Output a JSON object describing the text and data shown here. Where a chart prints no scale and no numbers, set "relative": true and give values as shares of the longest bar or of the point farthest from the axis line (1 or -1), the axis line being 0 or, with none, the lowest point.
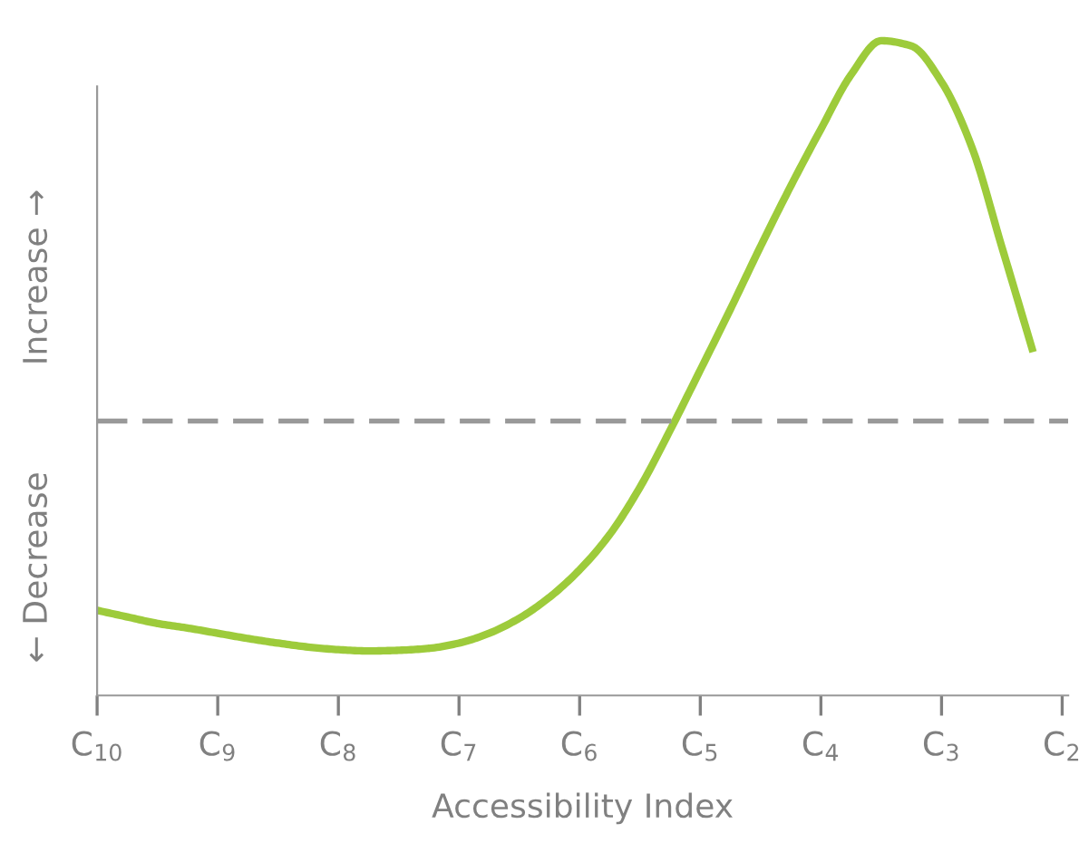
{
  "chart_data": {
    "type": "line",
    "relative": true,
    "xlabel": "Accessibility Index",
    "annotations": [
      "← Decrease",
      "Increase →"
    ],
    "categories": [
      "C$_{10}$",
      null,
      null,
      null,
      "C$_{9}$",
      null,
      null,
      null,
      "C$_{8}$",
      null,
      null,
      null,
      "C$_{7}$",
      null,
      null,
      null,
      "C$_{6}$",
      null,
      null,
      null,
      "C$_{5}$",
      null,
      null,
      null,
      "C$_{4}$",
      null,
      null,
      null,
      "C$_{3}$",
      null,
      null,
      null,
      "C$_{2}$"
    ],
    "series": [
      {
        "color": "#9dcb3b",
        "values": [
          0.13,
          0.12,
          0.11,
          0.103,
          0.095,
          0.087,
          0.08,
          0.074,
          0.07,
          0.068,
          0.069,
          0.072,
          0.08,
          0.095,
          0.118,
          0.15,
          0.192,
          0.246,
          0.318,
          0.405,
          0.497,
          0.59,
          0.686,
          0.778,
          0.865,
          0.948,
          1.0,
          0.992,
          0.937,
          0.838,
          0.685,
          0.53,
          null
        ]
      }
    ],
    "ref_lines": [
      {
        "axis": "y",
        "value": 0.419,
        "color": "#999999",
        "line_style": "dashed"
      }
    ],
    "grid": false,
    "marker": "none",
    "line_style": "solid"
  }
}
